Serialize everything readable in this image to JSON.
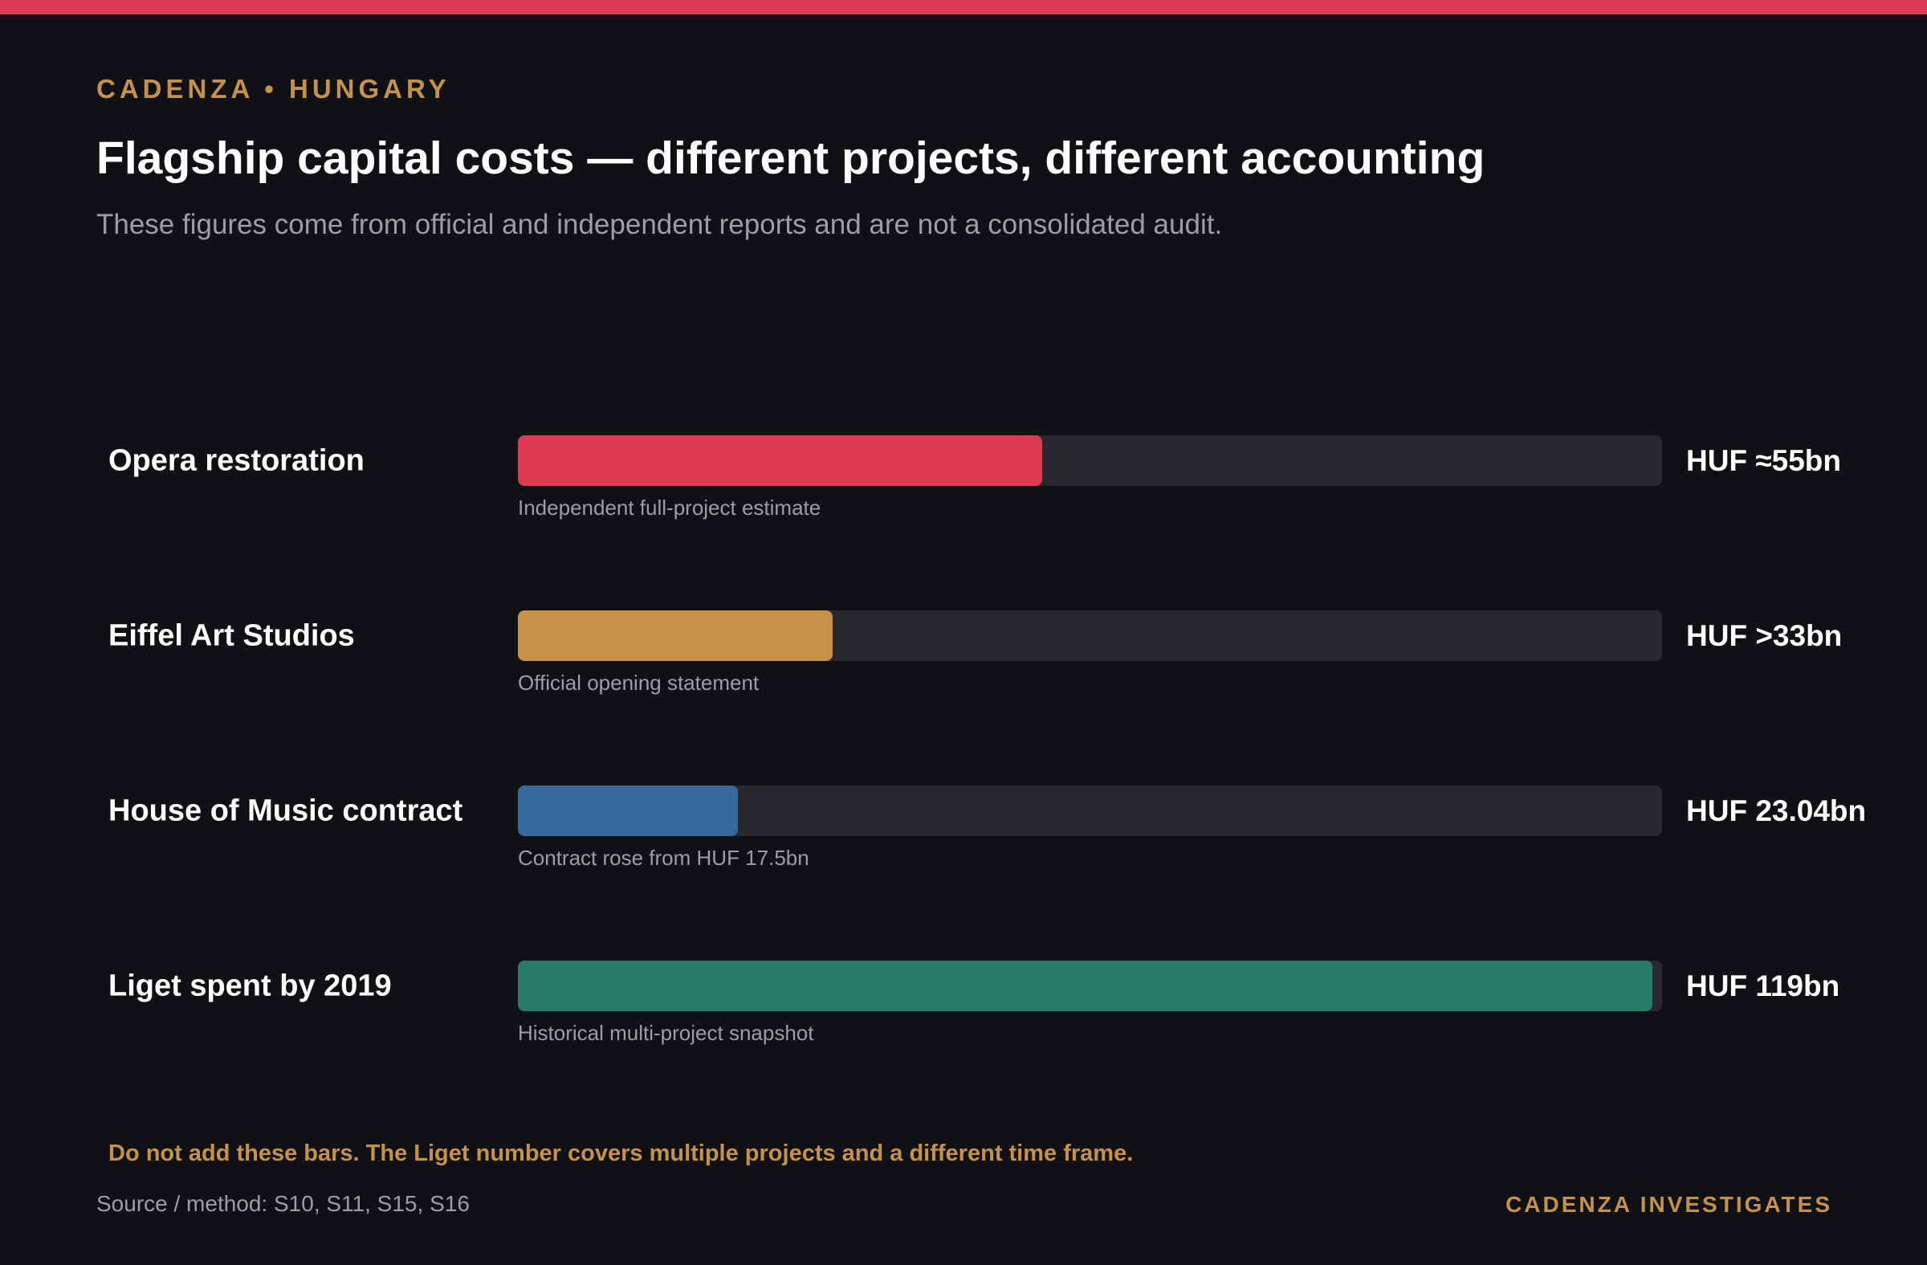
{
  "theme": {
    "accent": "#e03a52",
    "gold": "#c6924a",
    "background": "#101114",
    "track": "#28292e"
  },
  "header": {
    "kicker": "CADENZA • HUNGARY",
    "title": "Flagship capital costs — different projects, different accounting",
    "subtitle": "These figures come from official and independent reports and are not a consolidated audit."
  },
  "chart_data": {
    "type": "bar",
    "orientation": "horizontal",
    "unit": "HUF bn",
    "xlim": [
      0,
      120
    ],
    "categories": [
      "Opera restoration",
      "Eiffel Art Studios",
      "House of Music contract",
      "Liget spent by 2019"
    ],
    "values": [
      55,
      33,
      23.04,
      119
    ],
    "value_labels": [
      "HUF ≈55bn",
      "HUF >33bn",
      "HUF 23.04bn",
      "HUF 119bn"
    ],
    "notes": [
      "Independent full-project estimate",
      "Official opening statement",
      "Contract rose from HUF 17.5bn",
      "Historical multi-project snapshot"
    ],
    "colors": [
      "#e03a52",
      "#c6924a",
      "#366a9f",
      "#2a7b65"
    ]
  },
  "footer": {
    "warning": "Do not add these bars. The Liget number covers multiple projects and a different time frame.",
    "source": "Source / method: S10, S11, S15, S16",
    "brand": "CADENZA INVESTIGATES"
  }
}
